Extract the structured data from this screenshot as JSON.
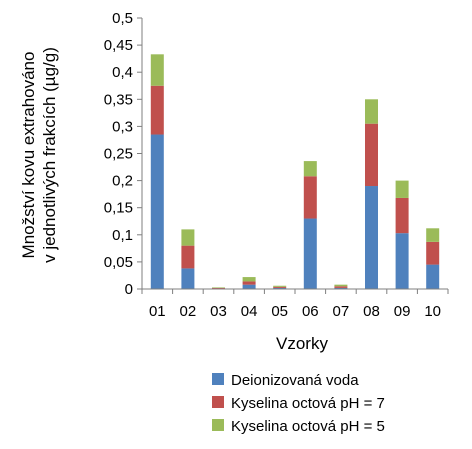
{
  "chart_data": {
    "type": "bar",
    "stacked": true,
    "categories": [
      "01",
      "02",
      "03",
      "04",
      "05",
      "06",
      "07",
      "08",
      "09",
      "10"
    ],
    "series": [
      {
        "name": "Deionizovaná voda",
        "color": "#4f81bd",
        "values": [
          0.285,
          0.038,
          0.001,
          0.008,
          0.002,
          0.13,
          0.002,
          0.19,
          0.103,
          0.045
        ]
      },
      {
        "name": "Kyselina octová pH = 7",
        "color": "#c0504d",
        "values": [
          0.09,
          0.042,
          0.001,
          0.006,
          0.002,
          0.078,
          0.003,
          0.115,
          0.065,
          0.042
        ]
      },
      {
        "name": "Kyselina octová pH = 5",
        "color": "#9bbb59",
        "values": [
          0.058,
          0.03,
          0.001,
          0.008,
          0.002,
          0.028,
          0.003,
          0.045,
          0.032,
          0.025
        ]
      }
    ],
    "yticks": [
      "0",
      "0,05",
      "0,1",
      "0,15",
      "0,2",
      "0,25",
      "0,3",
      "0,35",
      "0,4",
      "0,45",
      "0,5"
    ],
    "ylim": [
      0,
      0.5
    ],
    "xlabel": "Vzorky",
    "ylabel_lines": [
      "Množství kovu extrahováno",
      "v jednotlivých frakcích (µg/g)"
    ],
    "grid": false,
    "legend_position": "bottom"
  }
}
